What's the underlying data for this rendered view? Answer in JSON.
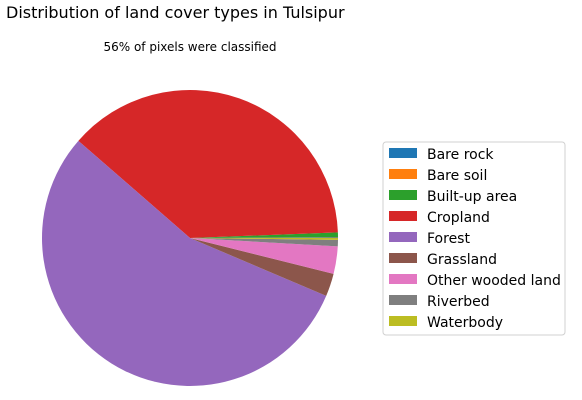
{
  "chart_data": {
    "type": "pie",
    "title": "Distribution of land cover types in Tulsipur",
    "subtitle": "56% of pixels were classified",
    "start_angle_deg": 0,
    "direction": "counterclockwise",
    "legend_placement": "right",
    "slices": [
      {
        "label": "Bare rock",
        "value": 0.05,
        "color": "#1f77b4"
      },
      {
        "label": "Bare soil",
        "value": 0.05,
        "color": "#ff7f0e"
      },
      {
        "label": "Built-up area",
        "value": 0.5,
        "color": "#2ca02c"
      },
      {
        "label": "Cropland",
        "value": 38.0,
        "color": "#d62728"
      },
      {
        "label": "Forest",
        "value": 55.0,
        "color": "#9467bd"
      },
      {
        "label": "Grassland",
        "value": 2.5,
        "color": "#8c564b"
      },
      {
        "label": "Other wooded land",
        "value": 3.0,
        "color": "#e377c2"
      },
      {
        "label": "Riverbed",
        "value": 0.7,
        "color": "#7f7f7f"
      },
      {
        "label": "Waterbody",
        "value": 0.2,
        "color": "#bcbd22"
      }
    ]
  }
}
